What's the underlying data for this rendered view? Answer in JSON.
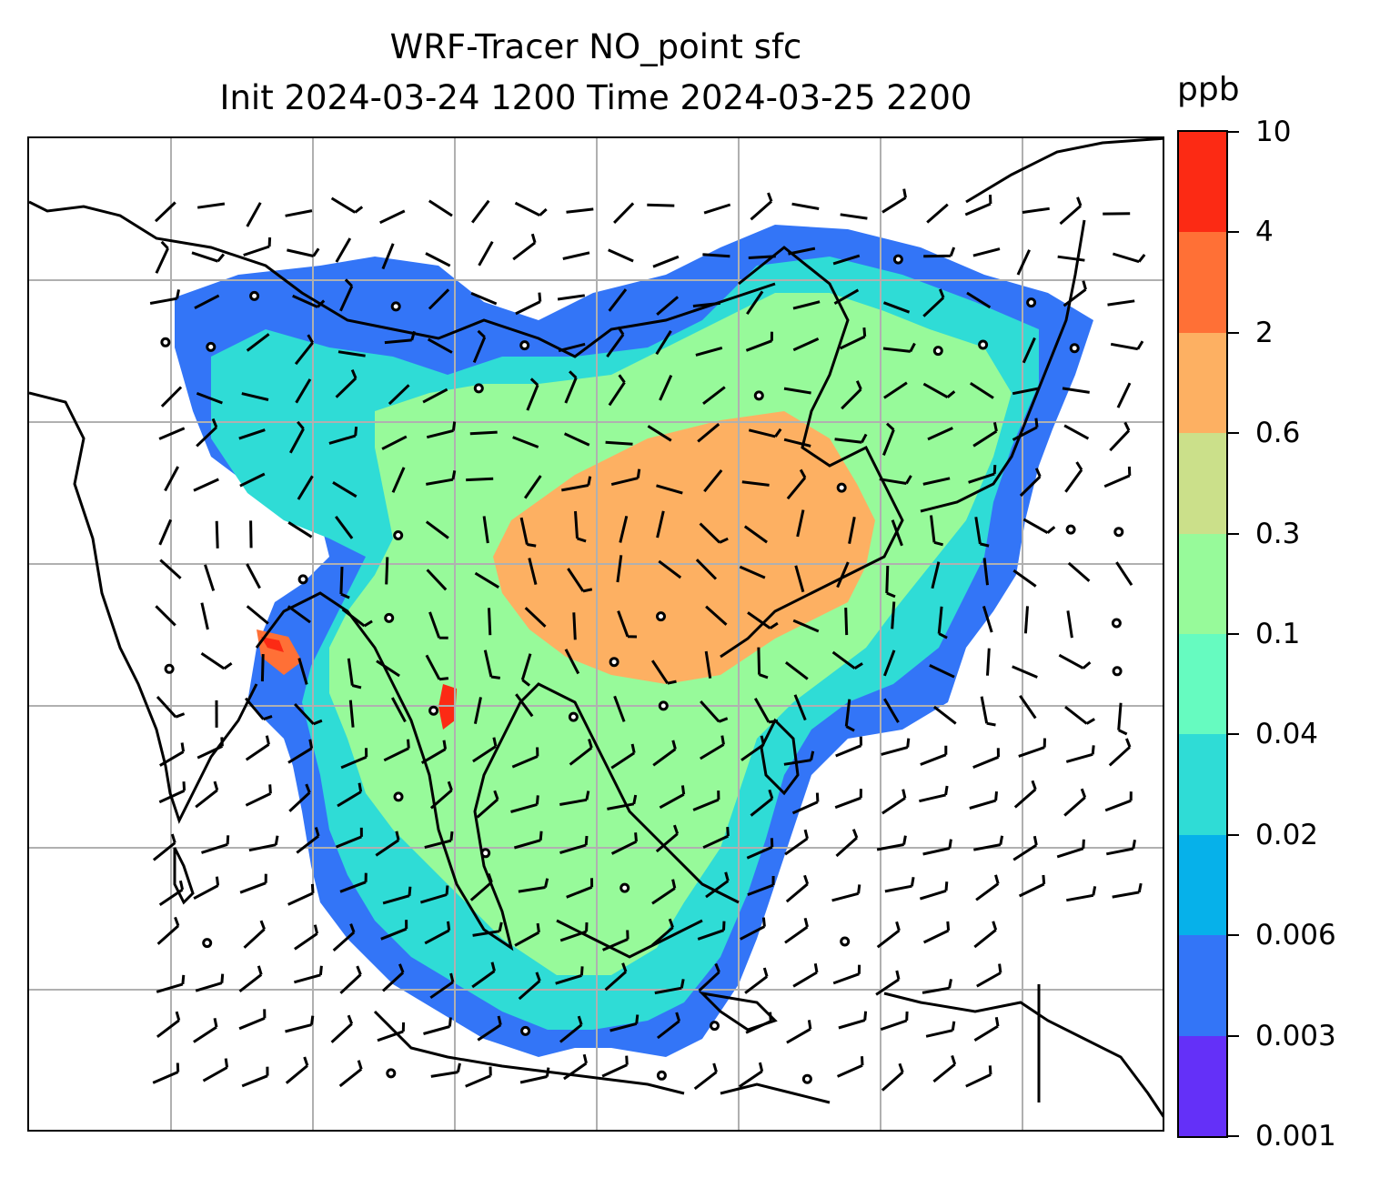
{
  "title": {
    "line1": "WRF-Tracer NO_point sfc",
    "line2": "Init 2024-03-24 1200 Time 2024-03-25 2200"
  },
  "colorbar": {
    "unit": "ppb",
    "levels": [
      "0.001",
      "0.003",
      "0.006",
      "0.02",
      "0.04",
      "0.1",
      "0.3",
      "0.6",
      "2",
      "4",
      "10"
    ],
    "colors": [
      "#6430f8",
      "#3375f7",
      "#06b1ea",
      "#2fdcd6",
      "#66fbc0",
      "#97fa9a",
      "#cbe08a",
      "#fdb062",
      "#ff7036",
      "#fc2a14"
    ]
  },
  "map": {
    "gridlines": true,
    "gridline_color": "#b0b0b0",
    "coastline_color": "#000000",
    "wind_barbs": true,
    "calm_station_markers": true
  }
}
